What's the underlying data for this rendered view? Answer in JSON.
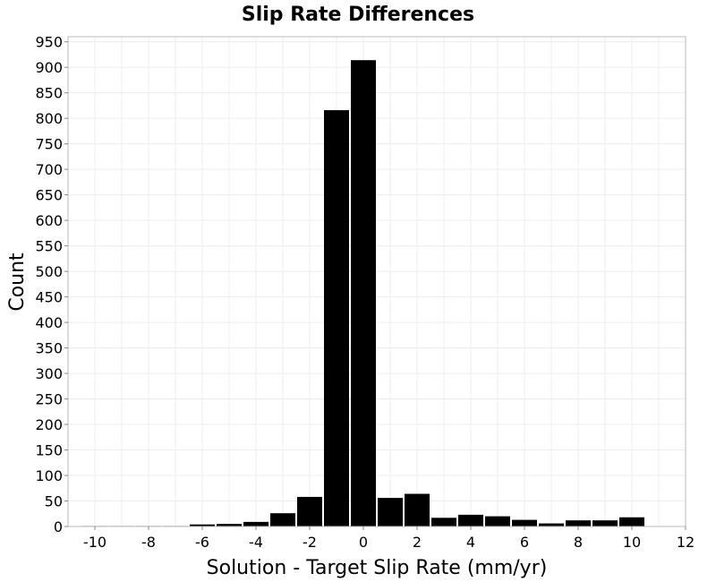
{
  "chart_data": {
    "type": "bar",
    "title": "Slip Rate Differences",
    "xlabel": "Solution - Target Slip Rate (mm/yr)",
    "ylabel": "Count",
    "xlim": [
      -11,
      12
    ],
    "ylim": [
      0,
      960
    ],
    "xticks": [
      -10,
      -8,
      -6,
      -4,
      -2,
      0,
      2,
      4,
      6,
      8,
      10,
      12
    ],
    "yticks": [
      0,
      50,
      100,
      150,
      200,
      250,
      300,
      350,
      400,
      450,
      500,
      550,
      600,
      650,
      700,
      750,
      800,
      850,
      900,
      950
    ],
    "bin_width": 1,
    "grid": true,
    "legend": "none",
    "bar_color": "#000000",
    "x": [
      -10,
      -9,
      -8,
      -7,
      -6,
      -5,
      -4,
      -3,
      -2,
      -1,
      0,
      1,
      2,
      3,
      4,
      5,
      6,
      7,
      8,
      9,
      10
    ],
    "values": [
      1,
      1,
      1,
      1,
      4,
      5,
      9,
      26,
      58,
      816,
      914,
      56,
      64,
      17,
      23,
      20,
      13,
      6,
      12,
      12,
      18
    ]
  }
}
